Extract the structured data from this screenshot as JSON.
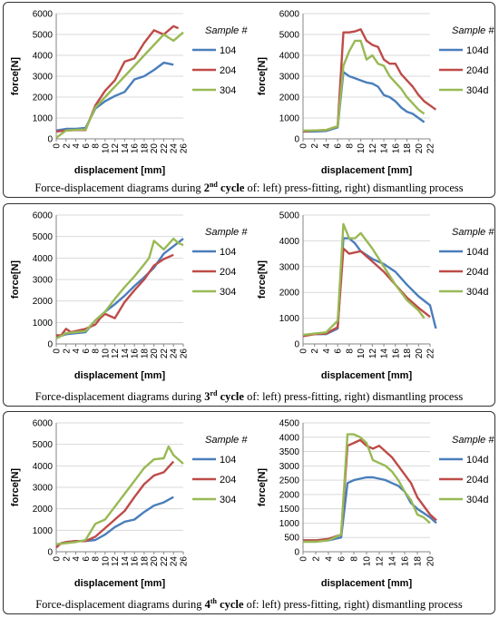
{
  "colors": {
    "s1": "#4a7ebb",
    "s2": "#be4b48",
    "s3": "#98b954",
    "grid": "#d9d9d9",
    "axis": "#868686"
  },
  "panels": [
    {
      "caption": {
        "pre": "Force-displacement diagrams during ",
        "num": "2",
        "suffix": "nd",
        "cycle": " cycle",
        "post": " of: left) press-fitting, right) dismantling process"
      }
    },
    {
      "caption": {
        "pre": "Force-displacement diagrams during ",
        "num": "3",
        "suffix": "rd",
        "cycle": " cycle",
        "post": " of: left) press-fitting, right) dismantling process"
      }
    },
    {
      "caption": {
        "pre": "Force-displacement diagrams during ",
        "num": "4",
        "suffix": "th",
        "cycle": " cycle",
        "post": " of: left) press-fitting, right) dismantling process"
      }
    }
  ],
  "chart_data": [
    {
      "type": "line",
      "xlabel": "displacement [mm]",
      "ylabel": "force[N]",
      "x_ticks": [
        "0",
        "2",
        "4",
        "6",
        "8",
        "10",
        "12",
        "14",
        "16",
        "18",
        "20",
        "22",
        "24",
        "26"
      ],
      "y_ticks": [
        "0",
        "1000",
        "2000",
        "3000",
        "4000",
        "5000",
        "6000"
      ],
      "ylim": [
        0,
        6000
      ],
      "legend_title": "Sample #",
      "legend_position": "right",
      "series": [
        {
          "name": "104",
          "color": "s1",
          "x": [
            0,
            2,
            4,
            6,
            8,
            10,
            12,
            14,
            16,
            18,
            20,
            22,
            24
          ],
          "values": [
            400,
            480,
            480,
            520,
            1450,
            1800,
            2050,
            2250,
            2850,
            3000,
            3300,
            3650,
            3550
          ]
        },
        {
          "name": "204",
          "color": "s2",
          "x": [
            0,
            2,
            4,
            6,
            8,
            10,
            12,
            14,
            16,
            18,
            20,
            22,
            24,
            25
          ],
          "values": [
            350,
            400,
            420,
            420,
            1600,
            2300,
            2800,
            3700,
            3850,
            4600,
            5200,
            5000,
            5400,
            5300
          ]
        },
        {
          "name": "304",
          "color": "s3",
          "x": [
            0,
            2,
            4,
            6,
            8,
            10,
            12,
            14,
            16,
            18,
            20,
            22,
            24,
            26
          ],
          "values": [
            50,
            400,
            430,
            450,
            1500,
            2000,
            2500,
            3000,
            3500,
            4000,
            4500,
            5000,
            4700,
            5100
          ]
        }
      ]
    },
    {
      "type": "line",
      "xlabel": "displacement [mm]",
      "ylabel": "force[N]",
      "x_ticks": [
        "0",
        "2",
        "4",
        "6",
        "8",
        "10",
        "12",
        "14",
        "16",
        "18",
        "20",
        "22"
      ],
      "y_ticks": [
        "0",
        "1000",
        "2000",
        "3000",
        "4000",
        "5000",
        "6000"
      ],
      "ylim": [
        0,
        6000
      ],
      "legend_title": "Sample #",
      "legend_position": "right",
      "series": [
        {
          "name": "104d",
          "color": "s1",
          "x": [
            0,
            2,
            4,
            6,
            7,
            8,
            9,
            10,
            11,
            12,
            13,
            14,
            15,
            16,
            17,
            18,
            19,
            20,
            21
          ],
          "values": [
            350,
            350,
            380,
            550,
            3200,
            3000,
            2900,
            2800,
            2700,
            2650,
            2500,
            2100,
            2000,
            1800,
            1500,
            1300,
            1200,
            1000,
            800
          ]
        },
        {
          "name": "204d",
          "color": "s2",
          "x": [
            0,
            2,
            4,
            6,
            7,
            8,
            9,
            10,
            11,
            12,
            13,
            14,
            15,
            16,
            17,
            18,
            19,
            20,
            21,
            22,
            23
          ],
          "values": [
            350,
            400,
            420,
            600,
            5100,
            5100,
            5150,
            5250,
            4700,
            4500,
            4400,
            3800,
            3600,
            3600,
            3100,
            2800,
            2500,
            2100,
            1800,
            1600,
            1400
          ]
        },
        {
          "name": "304d",
          "color": "s3",
          "x": [
            0,
            2,
            4,
            6,
            7,
            8,
            9,
            10,
            11,
            12,
            13,
            14,
            15,
            16,
            17,
            18,
            19,
            20,
            21
          ],
          "values": [
            400,
            400,
            420,
            600,
            3500,
            4200,
            4700,
            4700,
            3800,
            4000,
            3600,
            3500,
            3000,
            2700,
            2400,
            2000,
            1700,
            1400,
            1200
          ]
        }
      ]
    },
    {
      "type": "line",
      "xlabel": "displacement [mm]",
      "ylabel": "force[N]",
      "x_ticks": [
        "0",
        "2",
        "4",
        "6",
        "8",
        "10",
        "12",
        "14",
        "16",
        "18",
        "20",
        "22",
        "24",
        "26"
      ],
      "y_ticks": [
        "0",
        "1000",
        "2000",
        "3000",
        "4000",
        "5000",
        "6000"
      ],
      "ylim": [
        0,
        6000
      ],
      "legend_title": "Sample #",
      "legend_position": "right",
      "series": [
        {
          "name": "104",
          "color": "s1",
          "x": [
            0,
            2,
            4,
            6,
            8,
            10,
            12,
            14,
            16,
            18,
            20,
            22,
            24,
            26
          ],
          "values": [
            300,
            450,
            500,
            550,
            1100,
            1500,
            1850,
            2250,
            2700,
            3100,
            3550,
            4200,
            4550,
            4900
          ]
        },
        {
          "name": "204",
          "color": "s2",
          "x": [
            0,
            1,
            2,
            3,
            4,
            6,
            8,
            9,
            10,
            12,
            14,
            16,
            18,
            20,
            22,
            24
          ],
          "values": [
            400,
            400,
            700,
            550,
            600,
            700,
            900,
            1200,
            1400,
            1200,
            1950,
            2500,
            3000,
            3650,
            3950,
            4150
          ]
        },
        {
          "name": "304",
          "color": "s3",
          "x": [
            0,
            2,
            4,
            6,
            8,
            10,
            12,
            14,
            16,
            18,
            19,
            20,
            22,
            24,
            25,
            26
          ],
          "values": [
            250,
            500,
            550,
            600,
            1100,
            1500,
            2100,
            2650,
            3150,
            3700,
            4000,
            4800,
            4400,
            4900,
            4700,
            4600
          ]
        }
      ]
    },
    {
      "type": "line",
      "xlabel": "displacement [mm]",
      "ylabel": "force[N]",
      "x_ticks": [
        "0",
        "2",
        "4",
        "6",
        "8",
        "10",
        "12",
        "14",
        "16",
        "18",
        "20",
        "22"
      ],
      "x_tick_values": [
        0,
        2,
        4,
        6,
        8,
        10,
        12,
        14,
        16,
        18,
        20,
        22
      ],
      "y_ticks": [
        "0",
        "1000",
        "2000",
        "3000",
        "4000",
        "5000"
      ],
      "ylim": [
        0,
        5000
      ],
      "legend_title": "Sample #",
      "legend_position": "right",
      "series": [
        {
          "name": "104d",
          "color": "s1",
          "x": [
            0,
            2,
            4,
            6,
            7,
            8,
            9,
            10,
            12,
            14,
            16,
            18,
            20,
            22,
            23
          ],
          "values": [
            350,
            380,
            380,
            600,
            4100,
            4100,
            3900,
            3600,
            3300,
            3100,
            2800,
            2300,
            1850,
            1500,
            600
          ]
        },
        {
          "name": "204d",
          "color": "s2",
          "x": [
            0,
            2,
            4,
            6,
            7,
            8,
            9,
            10,
            12,
            14,
            16,
            18,
            20,
            22
          ],
          "values": [
            300,
            380,
            400,
            650,
            3700,
            3500,
            3550,
            3600,
            3200,
            2800,
            2300,
            1800,
            1400,
            1050
          ]
        },
        {
          "name": "304d",
          "color": "s3",
          "x": [
            0,
            2,
            4,
            6,
            7,
            8,
            9,
            10,
            12,
            14,
            16,
            18,
            20,
            21
          ],
          "values": [
            350,
            400,
            450,
            900,
            4650,
            4100,
            4100,
            4300,
            3700,
            3000,
            2300,
            1700,
            1300,
            1000
          ]
        }
      ]
    },
    {
      "type": "line",
      "xlabel": "displacement [mm]",
      "ylabel": "force[N]",
      "x_ticks": [
        "0",
        "2",
        "4",
        "6",
        "8",
        "10",
        "12",
        "14",
        "16",
        "18",
        "20",
        "22",
        "24",
        "26"
      ],
      "y_ticks": [
        "0",
        "1000",
        "2000",
        "3000",
        "4000",
        "5000",
        "6000"
      ],
      "ylim": [
        0,
        6000
      ],
      "legend_title": "Sample #",
      "legend_position": "right",
      "series": [
        {
          "name": "104",
          "color": "s1",
          "x": [
            0,
            2,
            4,
            6,
            8,
            10,
            12,
            14,
            16,
            18,
            20,
            22,
            24
          ],
          "values": [
            300,
            450,
            500,
            500,
            550,
            800,
            1150,
            1400,
            1500,
            1850,
            2150,
            2300,
            2550
          ]
        },
        {
          "name": "204",
          "color": "s2",
          "x": [
            0,
            1,
            2,
            4,
            6,
            8,
            10,
            12,
            14,
            16,
            18,
            20,
            22,
            24
          ],
          "values": [
            200,
            400,
            450,
            500,
            500,
            700,
            1100,
            1500,
            1900,
            2550,
            3150,
            3550,
            3700,
            4200
          ]
        },
        {
          "name": "304",
          "color": "s3",
          "x": [
            0,
            2,
            4,
            6,
            8,
            10,
            12,
            14,
            16,
            18,
            20,
            22,
            23,
            24,
            26
          ],
          "values": [
            350,
            400,
            450,
            550,
            1300,
            1500,
            2100,
            2700,
            3300,
            3900,
            4300,
            4350,
            4900,
            4500,
            4100
          ]
        }
      ]
    },
    {
      "type": "line",
      "xlabel": "displacement [mm]",
      "ylabel": "force[N]",
      "x_ticks": [
        "0",
        "2",
        "4",
        "6",
        "8",
        "10",
        "12",
        "14",
        "16",
        "18",
        "20"
      ],
      "y_ticks": [
        "0",
        "500",
        "1000",
        "1500",
        "2000",
        "2500",
        "3000",
        "3500",
        "4000",
        "4500"
      ],
      "ylim": [
        0,
        4500
      ],
      "legend_title": "Sample #",
      "legend_position": "right",
      "series": [
        {
          "name": "104d",
          "color": "s1",
          "x": [
            0,
            2,
            4,
            6,
            7,
            8,
            9,
            10,
            11,
            12,
            13,
            14,
            15,
            16,
            17,
            18,
            19,
            20,
            21
          ],
          "values": [
            400,
            400,
            400,
            500,
            2400,
            2500,
            2550,
            2600,
            2600,
            2550,
            2500,
            2400,
            2300,
            2100,
            1700,
            1500,
            1350,
            1200,
            1000
          ]
        },
        {
          "name": "204d",
          "color": "s2",
          "x": [
            0,
            2,
            4,
            6,
            7,
            8,
            9,
            10,
            11,
            12,
            13,
            14,
            15,
            16,
            17,
            18,
            19,
            20,
            21
          ],
          "values": [
            400,
            400,
            450,
            600,
            3700,
            3800,
            3900,
            3700,
            3600,
            3700,
            3500,
            3300,
            3000,
            2700,
            2400,
            1900,
            1600,
            1300,
            1100
          ]
        },
        {
          "name": "304d",
          "color": "s3",
          "x": [
            0,
            2,
            4,
            6,
            7,
            8,
            9,
            10,
            11,
            12,
            13,
            14,
            15,
            16,
            17,
            18,
            19,
            20
          ],
          "values": [
            350,
            350,
            400,
            600,
            4100,
            4100,
            4000,
            3800,
            3200,
            3100,
            3000,
            2800,
            2500,
            2100,
            1800,
            1300,
            1200,
            1000
          ]
        }
      ]
    }
  ]
}
